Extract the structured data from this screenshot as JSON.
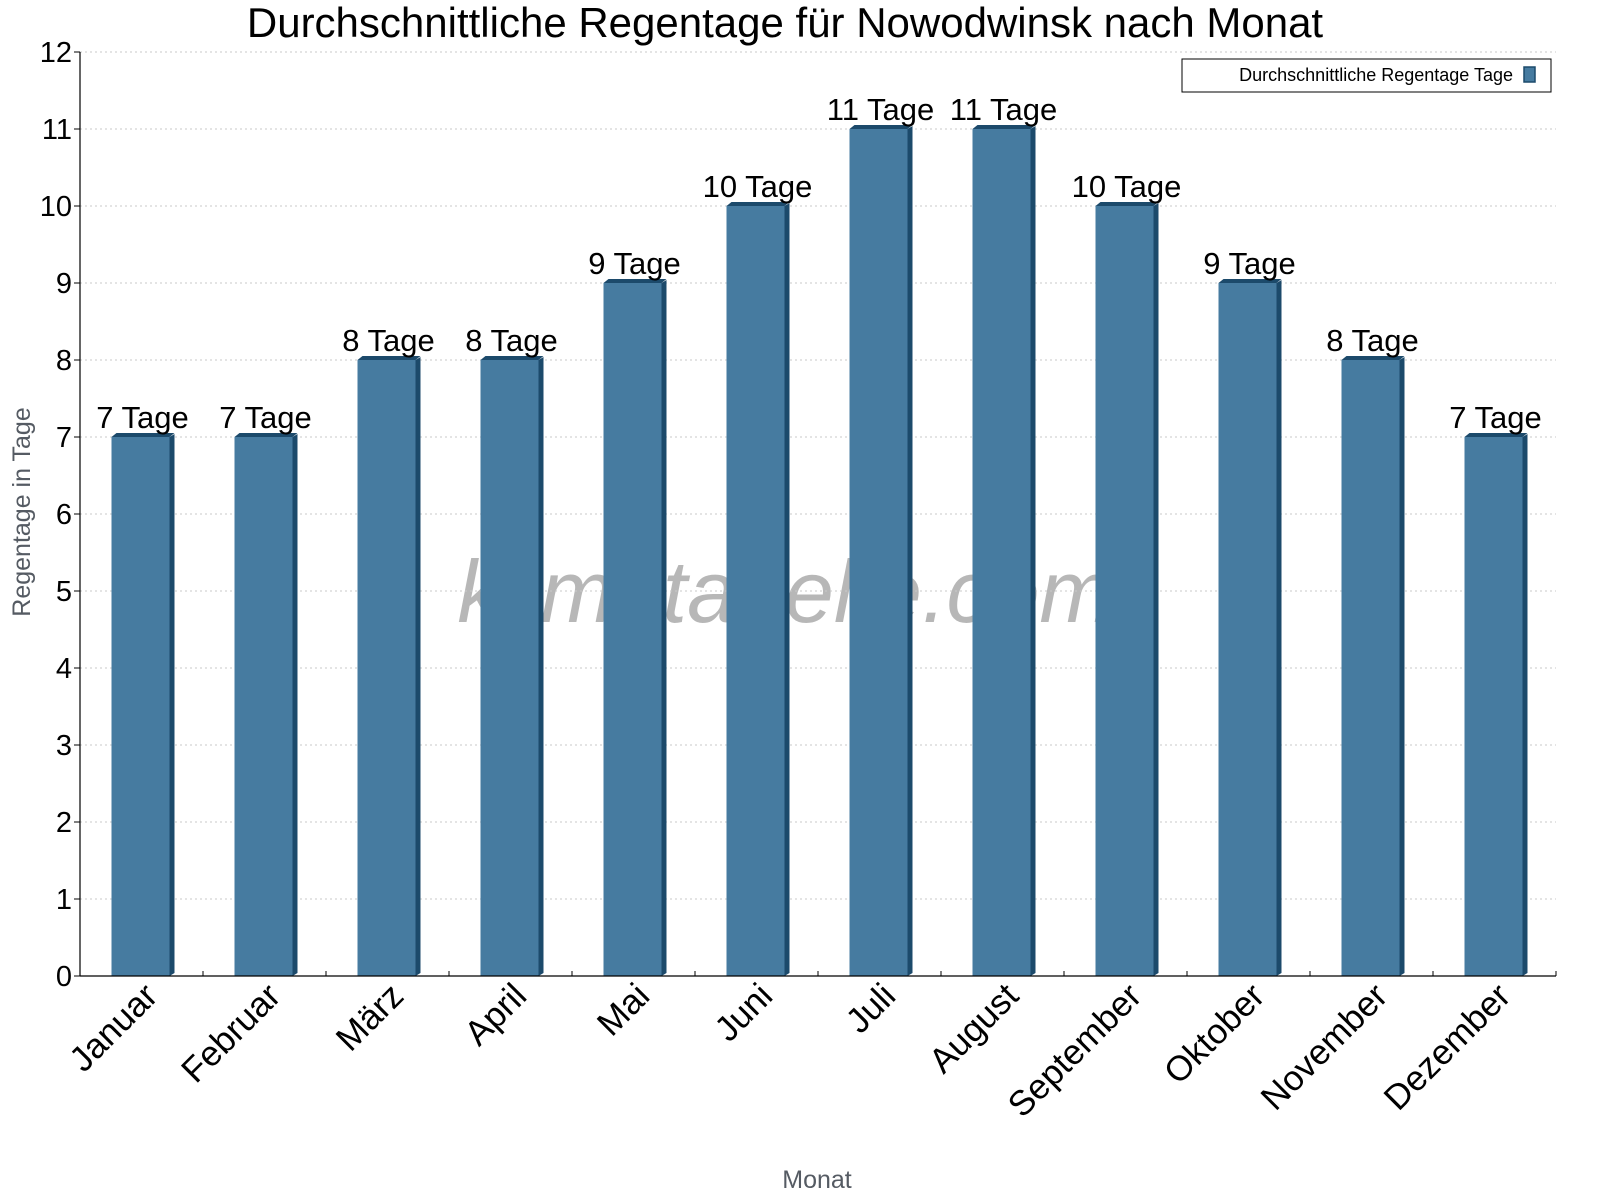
{
  "chart_data": {
    "type": "bar",
    "title": "Durchschnittliche Regentage für Nowodwinsk nach Monat",
    "xlabel": "Monat",
    "ylabel": "Regentage in Tage",
    "ylim": [
      0,
      12
    ],
    "yticks": [
      0,
      1,
      2,
      3,
      4,
      5,
      6,
      7,
      8,
      9,
      10,
      11,
      12
    ],
    "grid": true,
    "legend_position": "top-right",
    "categories": [
      "Januar",
      "Februar",
      "März",
      "April",
      "Mai",
      "Juni",
      "Juli",
      "August",
      "September",
      "Oktober",
      "November",
      "Dezember"
    ],
    "series": [
      {
        "name": "Durchschnittliche Regentage Tage",
        "color": "#467ba0",
        "values": [
          7,
          7,
          8,
          8,
          9,
          10,
          11,
          11,
          10,
          9,
          8,
          7
        ],
        "data_labels": [
          "7 Tage",
          "7 Tage",
          "8 Tage",
          "8 Tage",
          "9 Tage",
          "10 Tage",
          "11 Tage",
          "11 Tage",
          "10 Tage",
          "9 Tage",
          "8 Tage",
          "7 Tage"
        ]
      }
    ]
  },
  "watermark": "klimatabelle.com"
}
